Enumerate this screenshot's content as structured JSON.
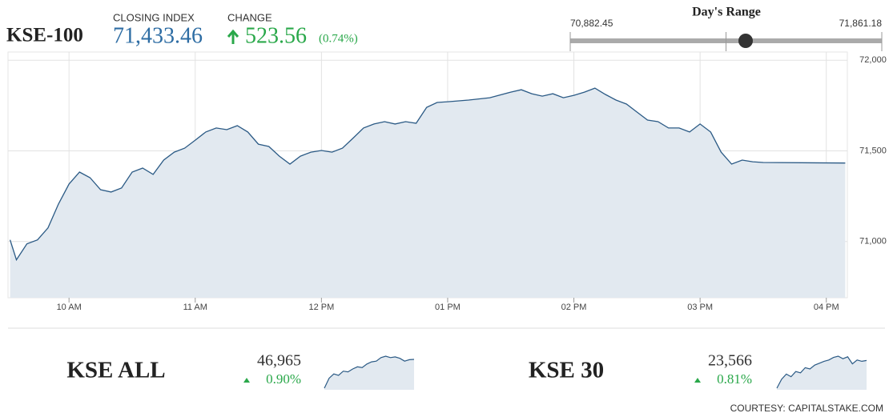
{
  "header": {
    "index_name": "KSE-100",
    "closing_label": "CLOSING INDEX",
    "closing_index": {
      "value": 71433.46,
      "label": "71,433.46"
    },
    "change_label": "CHANGE",
    "change": "523.56",
    "change_pct": "(0.74%)"
  },
  "range": {
    "title": "Day's Range",
    "low": {
      "value": 70882.45,
      "label": "70,882.45"
    },
    "high": {
      "value": 71861.18,
      "label": "71,861.18"
    }
  },
  "chart_data": {
    "type": "line",
    "color": "#2b5a85",
    "area_color": "#e2e9f0",
    "grid": true,
    "x": [
      "09:32",
      "09:35",
      "09:40",
      "09:45",
      "09:50",
      "09:55",
      "10:00",
      "10:05",
      "10:10",
      "10:15",
      "10:20",
      "10:25",
      "10:30",
      "10:35",
      "10:40",
      "10:45",
      "10:50",
      "10:55",
      "11:00",
      "11:05",
      "11:10",
      "11:15",
      "11:20",
      "11:25",
      "11:30",
      "11:35",
      "11:40",
      "11:45",
      "11:50",
      "11:55",
      "12:00",
      "12:05",
      "12:10",
      "12:15",
      "12:20",
      "12:25",
      "12:30",
      "12:35",
      "12:40",
      "12:45",
      "12:50",
      "12:55",
      "13:00",
      "13:10",
      "13:20",
      "13:30",
      "13:35",
      "13:40",
      "13:45",
      "13:50",
      "13:55",
      "14:00",
      "14:05",
      "14:10",
      "14:15",
      "14:20",
      "14:25",
      "14:30",
      "14:35",
      "14:40",
      "14:45",
      "14:50",
      "14:55",
      "15:00",
      "15:05",
      "15:10",
      "15:15",
      "15:20",
      "15:25",
      "15:30",
      "16:09"
    ],
    "values": [
      71009,
      70899,
      70987,
      71009,
      71075,
      71207,
      71317,
      71383,
      71352,
      71286,
      71273,
      71295,
      71383,
      71405,
      71370,
      71449,
      71493,
      71515,
      71559,
      71604,
      71626,
      71617,
      71639,
      71604,
      71537,
      71524,
      71471,
      71427,
      71471,
      71493,
      71502,
      71493,
      71515,
      71570,
      71626,
      71648,
      71661,
      71648,
      71661,
      71652,
      71740,
      71767,
      71771,
      71780,
      71793,
      71824,
      71837,
      71815,
      71802,
      71815,
      71793,
      71806,
      71824,
      71846,
      71811,
      71780,
      71758,
      71714,
      71670,
      71661,
      71626,
      71626,
      71604,
      71648,
      71604,
      71493,
      71427,
      71449,
      71440,
      71436,
      71433
    ],
    "xlim": [
      "09:31",
      "16:10"
    ],
    "xticks": [
      {
        "value": "10:00",
        "label": "10 AM"
      },
      {
        "value": "11:00",
        "label": "11 AM"
      },
      {
        "value": "12:00",
        "label": "12 PM"
      },
      {
        "value": "13:00",
        "label": "01 PM"
      },
      {
        "value": "14:00",
        "label": "02 PM"
      },
      {
        "value": "15:00",
        "label": "03 PM"
      },
      {
        "value": "16:00",
        "label": "04 PM"
      }
    ],
    "ylim": [
      70690,
      72045
    ],
    "yticks": [
      {
        "value": 71000,
        "label": "71,000"
      },
      {
        "value": 71500,
        "label": "71,500"
      },
      {
        "value": 72000,
        "label": "72,000"
      }
    ]
  },
  "tickers": [
    {
      "name": "KSE ALL",
      "value": "46,965",
      "change": "0.90%",
      "sparkline": [
        46560,
        46700,
        46760,
        46740,
        46800,
        46790,
        46830,
        46860,
        46850,
        46900,
        46930,
        46940,
        46990,
        47010,
        46990,
        47000,
        46980,
        46940,
        46960,
        46965
      ]
    },
    {
      "name": "KSE 30",
      "value": "23,566",
      "change": "0.81%",
      "sparkline": [
        23350,
        23420,
        23460,
        23440,
        23480,
        23470,
        23510,
        23500,
        23530,
        23545,
        23560,
        23570,
        23590,
        23600,
        23580,
        23595,
        23540,
        23570,
        23560,
        23566
      ]
    }
  ],
  "footer": "COURTESY: CAPITALSTAKE.COM"
}
